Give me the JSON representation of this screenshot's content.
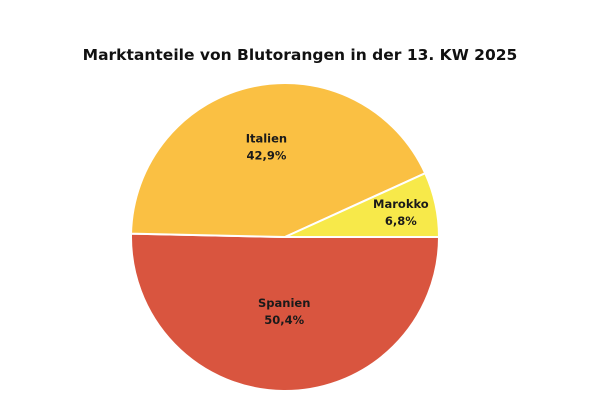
{
  "chart_data": {
    "type": "pie",
    "title": "Marktanteile von Blutorangen in der 13. KW 2025",
    "slices": [
      {
        "label": "Spanien",
        "value": 50.4,
        "value_label": "50,4%",
        "color": "#d9553f"
      },
      {
        "label": "Italien",
        "value": 42.9,
        "value_label": "42,9%",
        "color": "#fac043"
      },
      {
        "label": "Marokko",
        "value": 6.8,
        "value_label": "6,8%",
        "color": "#f7e94a"
      }
    ]
  }
}
